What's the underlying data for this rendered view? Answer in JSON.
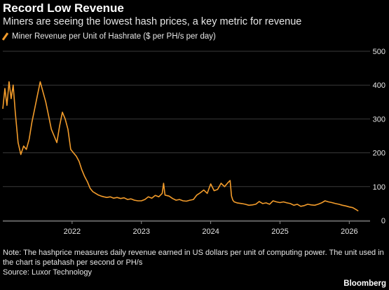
{
  "header": {
    "title": "Record Low Revenue",
    "subtitle": "Miners are seeing the lowest hash prices, a key metric for revenue"
  },
  "legend": {
    "label": "Miner Revenue per Unit of Hashrate ($ per PH/s per day)"
  },
  "footer": {
    "note": "Note: The hashprice measures daily revenue earned in US dollars per unit of computing power. The unit used in the chart is petahash per second or PH/s",
    "source": "Source: Luxor Technology",
    "brand": "Bloomberg"
  },
  "colors": {
    "series": "#f39c2b",
    "grid": "#3a3a3a",
    "background": "#000000"
  },
  "chart_data": {
    "type": "line",
    "title": "Record Low Revenue",
    "subtitle": "Miners are seeing the lowest hash prices, a key metric for revenue",
    "ylabel": "",
    "xlabel": "",
    "ylim": [
      0,
      500
    ],
    "yticks": [
      0,
      100,
      200,
      300,
      400,
      500
    ],
    "xlim": [
      2021.0,
      2026.3
    ],
    "xticks": [
      2022,
      2023,
      2024,
      2025,
      2026
    ],
    "xtick_labels": [
      "2022",
      "2023",
      "2024",
      "2025",
      "2026"
    ],
    "grid": true,
    "legend_position": "top-left",
    "series": [
      {
        "name": "Miner Revenue per Unit of Hashrate ($ per PH/s per day)",
        "x": [
          2021.0,
          2021.03,
          2021.06,
          2021.09,
          2021.12,
          2021.15,
          2021.18,
          2021.22,
          2021.26,
          2021.3,
          2021.34,
          2021.38,
          2021.42,
          2021.46,
          2021.5,
          2021.54,
          2021.58,
          2021.62,
          2021.66,
          2021.7,
          2021.74,
          2021.78,
          2021.82,
          2021.86,
          2021.9,
          2021.94,
          2021.98,
          2022.02,
          2022.06,
          2022.1,
          2022.14,
          2022.18,
          2022.22,
          2022.26,
          2022.3,
          2022.34,
          2022.38,
          2022.42,
          2022.46,
          2022.5,
          2022.55,
          2022.6,
          2022.65,
          2022.7,
          2022.75,
          2022.8,
          2022.85,
          2022.9,
          2022.95,
          2023.0,
          2023.05,
          2023.1,
          2023.15,
          2023.2,
          2023.25,
          2023.3,
          2023.32,
          2023.34,
          2023.4,
          2023.45,
          2023.5,
          2023.55,
          2023.6,
          2023.65,
          2023.7,
          2023.75,
          2023.8,
          2023.85,
          2023.9,
          2023.95,
          2024.0,
          2024.05,
          2024.1,
          2024.15,
          2024.2,
          2024.25,
          2024.28,
          2024.3,
          2024.32,
          2024.34,
          2024.38,
          2024.45,
          2024.5,
          2024.55,
          2024.6,
          2024.65,
          2024.7,
          2024.75,
          2024.8,
          2024.85,
          2024.9,
          2024.95,
          2025.0,
          2025.05,
          2025.1,
          2025.15,
          2025.2,
          2025.25,
          2025.3,
          2025.35,
          2025.4,
          2025.45,
          2025.5,
          2025.55,
          2025.6,
          2025.65,
          2025.7,
          2025.75,
          2025.8,
          2025.85,
          2025.9,
          2025.95,
          2026.0,
          2026.05,
          2026.1,
          2026.13
        ],
        "values": [
          330,
          390,
          340,
          410,
          360,
          400,
          320,
          230,
          195,
          220,
          210,
          240,
          290,
          330,
          370,
          410,
          380,
          350,
          310,
          270,
          250,
          230,
          280,
          320,
          300,
          270,
          210,
          200,
          190,
          175,
          150,
          130,
          115,
          95,
          85,
          80,
          75,
          72,
          70,
          68,
          70,
          66,
          68,
          65,
          67,
          62,
          64,
          60,
          58,
          58,
          62,
          70,
          66,
          74,
          70,
          80,
          110,
          75,
          72,
          65,
          60,
          62,
          58,
          57,
          60,
          62,
          75,
          82,
          90,
          80,
          108,
          88,
          92,
          110,
          100,
          112,
          118,
          72,
          60,
          55,
          52,
          50,
          48,
          45,
          46,
          48,
          56,
          50,
          52,
          48,
          58,
          55,
          53,
          55,
          52,
          50,
          45,
          48,
          42,
          44,
          48,
          46,
          45,
          48,
          52,
          58,
          55,
          53,
          50,
          48,
          45,
          43,
          40,
          38,
          32,
          28
        ]
      }
    ]
  }
}
